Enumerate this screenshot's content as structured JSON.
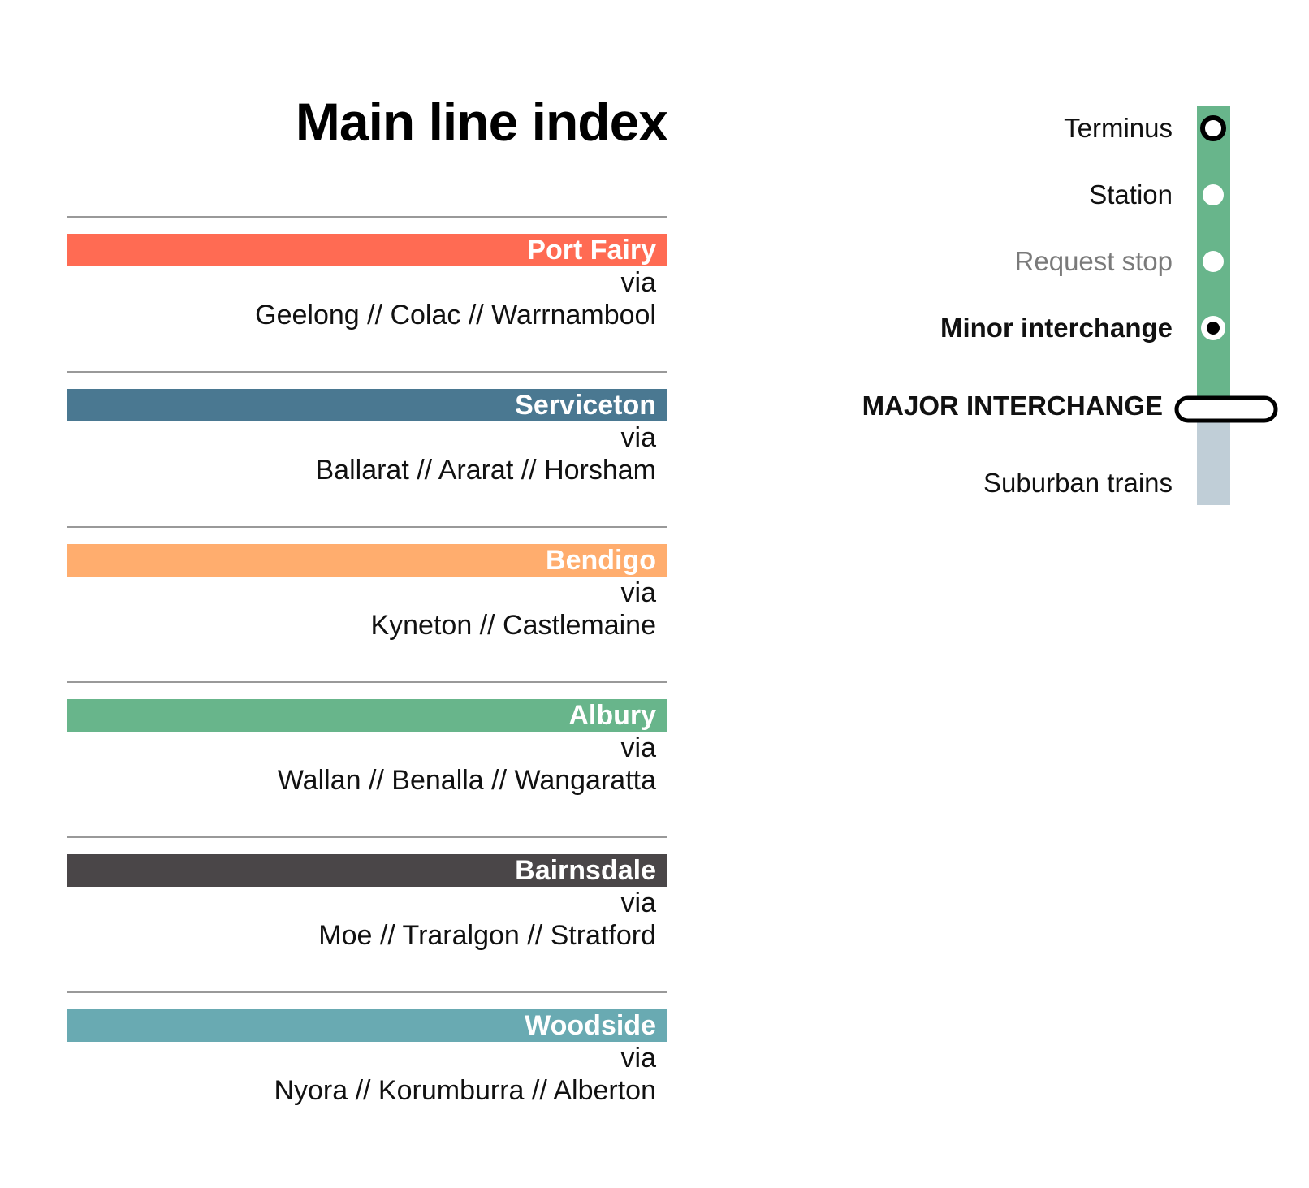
{
  "title": "Main line index",
  "lines": [
    {
      "name": "Port Fairy",
      "color": "#ff6b53",
      "via": "via",
      "stops": "Geelong // Colac // Warrnambool"
    },
    {
      "name": "Serviceton",
      "color": "#4a7891",
      "via": "via",
      "stops": "Ballarat // Ararat // Horsham"
    },
    {
      "name": "Bendigo",
      "color": "#ffad6e",
      "via": "via",
      "stops": "Kyneton // Castlemaine"
    },
    {
      "name": "Albury",
      "color": "#68b58b",
      "via": "via",
      "stops": "Wallan // Benalla // Wangaratta"
    },
    {
      "name": "Bairnsdale",
      "color": "#4a4648",
      "via": "via",
      "stops": "Moe // Traralgon // Stratford"
    },
    {
      "name": "Woodside",
      "color": "#69aab2",
      "via": "via",
      "stops": "Nyora // Korumburra // Alberton"
    }
  ],
  "legend": {
    "line_color": "#68b58b",
    "suburban_color": "#c0ced7",
    "items": [
      {
        "label": "Terminus",
        "symbol": "terminus-icon"
      },
      {
        "label": "Station",
        "symbol": "station-icon"
      },
      {
        "label": "Request stop",
        "symbol": "request-stop-icon"
      },
      {
        "label": "Minor interchange",
        "symbol": "minor-interchange-icon"
      },
      {
        "label": "MAJOR INTERCHANGE",
        "symbol": "major-interchange-icon"
      },
      {
        "label": "Suburban trains",
        "symbol": "suburban-line-icon"
      }
    ]
  }
}
